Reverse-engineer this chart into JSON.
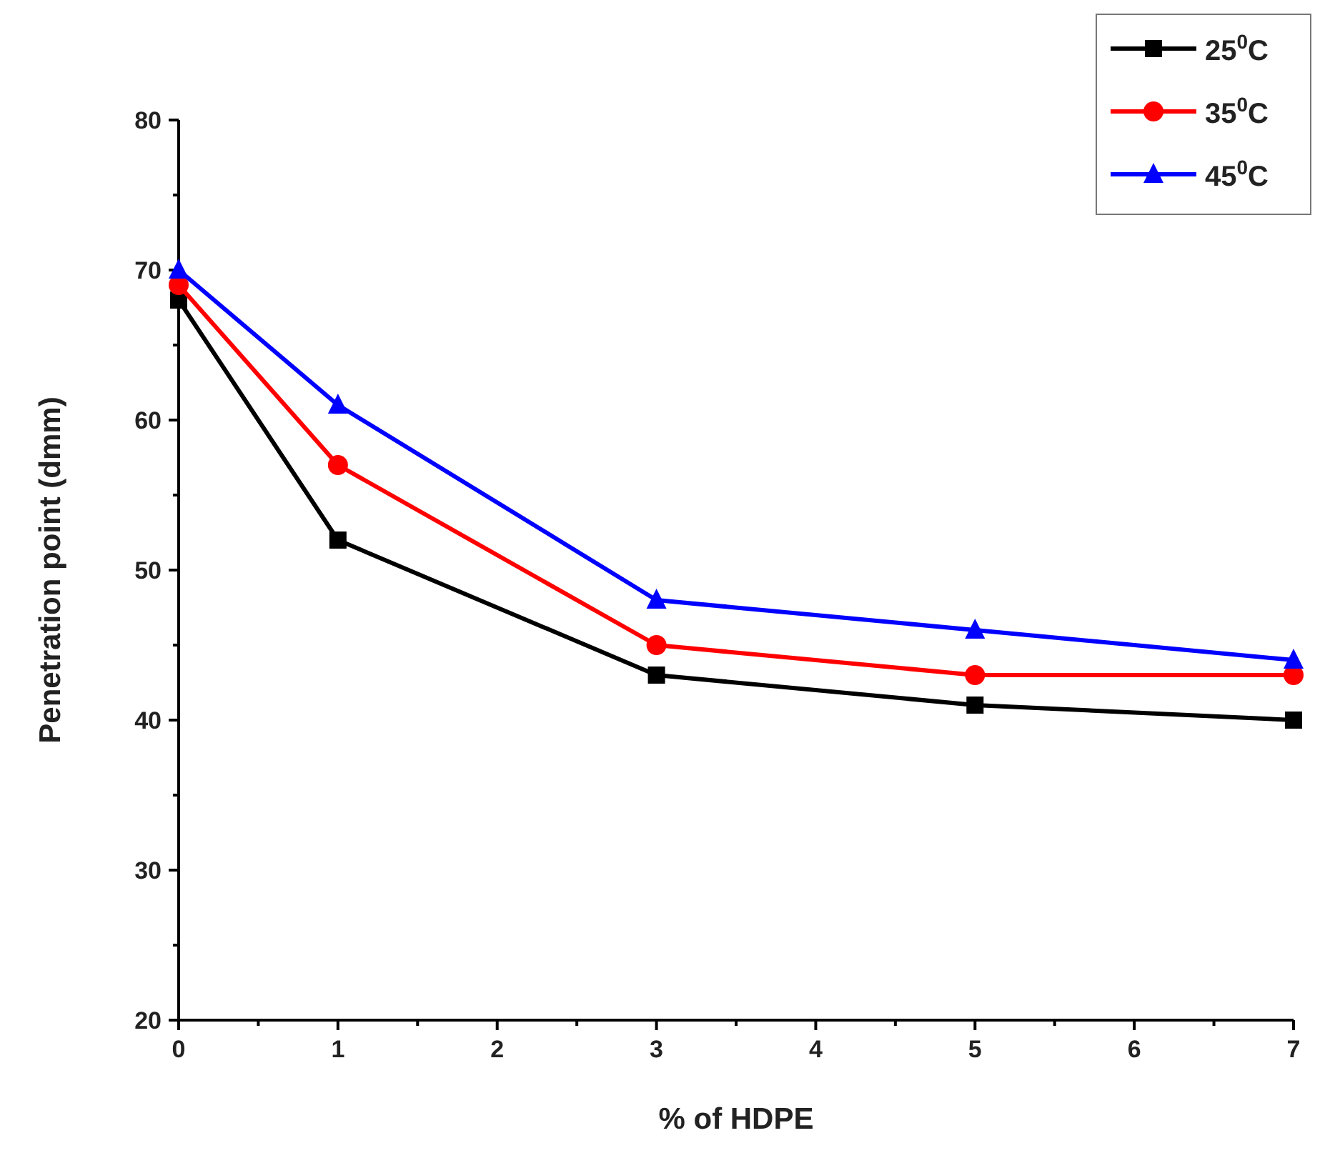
{
  "chart_data": {
    "type": "line",
    "xlabel": "% of HDPE",
    "ylabel": "Penetration point (dmm)",
    "x": [
      0,
      1,
      3,
      5,
      7
    ],
    "series": [
      {
        "name": "25$^{0}$C",
        "color": "#000000",
        "marker": "square",
        "values": [
          68,
          52,
          43,
          41,
          40
        ]
      },
      {
        "name": "35$^{0}$C",
        "color": "#ff0000",
        "marker": "circle",
        "values": [
          69,
          57,
          45,
          43,
          43
        ]
      },
      {
        "name": "45$^{0}$C",
        "color": "#0000ff",
        "marker": "triangle",
        "values": [
          70,
          61,
          48,
          46,
          44
        ]
      }
    ],
    "xlim": [
      0,
      7
    ],
    "xticks": [
      0,
      {
        "value": 0.5,
        "label": null
      },
      1,
      {
        "value": 1.5,
        "label": null
      },
      2,
      {
        "value": 2.5,
        "label": null
      },
      3,
      {
        "value": 3.5,
        "label": null
      },
      4,
      {
        "value": 4.5,
        "label": null
      },
      5,
      {
        "value": 5.5,
        "label": null
      },
      6,
      {
        "value": 6.5,
        "label": null
      },
      7
    ],
    "ylim": [
      20,
      80
    ],
    "yticks": [
      20,
      {
        "value": 25,
        "label": null
      },
      30,
      {
        "value": 35,
        "label": null
      },
      40,
      {
        "value": 45,
        "label": null
      },
      50,
      {
        "value": 55,
        "label": null
      },
      60,
      {
        "value": 65,
        "label": null
      },
      70,
      {
        "value": 75,
        "label": null
      },
      80
    ],
    "grid": false,
    "legend": "top right",
    "line_style": "solid"
  }
}
